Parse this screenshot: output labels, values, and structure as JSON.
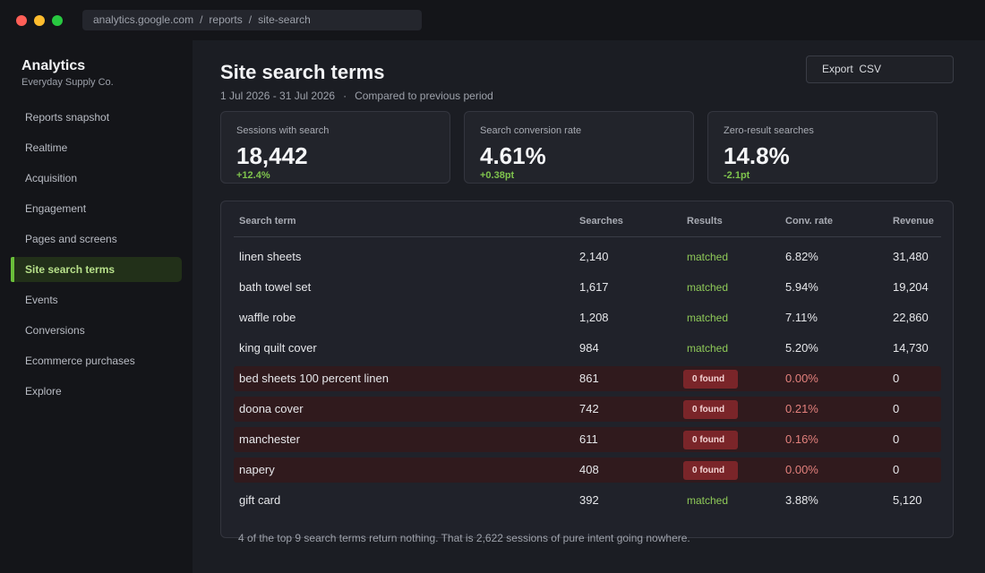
{
  "browser": {
    "url_parts": [
      "analytics.google.com",
      "reports",
      "site-search"
    ]
  },
  "sidebar": {
    "brand": "Analytics",
    "account": "Everyday Supply Co.",
    "items": [
      {
        "label": "Reports snapshot"
      },
      {
        "label": "Realtime"
      },
      {
        "label": "Acquisition"
      },
      {
        "label": "Engagement"
      },
      {
        "label": "Pages and screens"
      },
      {
        "label": "Site search terms",
        "active": true
      },
      {
        "label": "Events"
      },
      {
        "label": "Conversions"
      },
      {
        "label": "Ecommerce purchases"
      },
      {
        "label": "Explore"
      }
    ]
  },
  "header": {
    "title": "Site search terms",
    "date_range": "1 Jul 2026 - 31 Jul 2026",
    "separator": "·",
    "comparison": "Compared to previous period",
    "export_label": "Export  CSV"
  },
  "metrics": [
    {
      "label": "Sessions with search",
      "value": "18,442",
      "delta": "+12.4%"
    },
    {
      "label": "Search conversion rate",
      "value": "4.61%",
      "delta": "+0.38pt"
    },
    {
      "label": "Zero-result searches",
      "value": "14.8%",
      "delta": "-2.1pt"
    }
  ],
  "table": {
    "columns": [
      "Search term",
      "Searches",
      "Results",
      "Conv. rate",
      "Revenue"
    ],
    "rows": [
      {
        "term": "linen sheets",
        "searches": "2,140",
        "results": "matched",
        "conv": "6.82%",
        "revenue": "31,480",
        "zero": false
      },
      {
        "term": "bath towel set",
        "searches": "1,617",
        "results": "matched",
        "conv": "5.94%",
        "revenue": "19,204",
        "zero": false
      },
      {
        "term": "waffle robe",
        "searches": "1,208",
        "results": "matched",
        "conv": "7.11%",
        "revenue": "22,860",
        "zero": false
      },
      {
        "term": "king quilt cover",
        "searches": "984",
        "results": "matched",
        "conv": "5.20%",
        "revenue": "14,730",
        "zero": false
      },
      {
        "term": "bed sheets 100 percent linen",
        "searches": "861",
        "results": "0 found",
        "conv": "0.00%",
        "revenue": "0",
        "zero": true
      },
      {
        "term": "doona cover",
        "searches": "742",
        "results": "0 found",
        "conv": "0.21%",
        "revenue": "0",
        "zero": true
      },
      {
        "term": "manchester",
        "searches": "611",
        "results": "0 found",
        "conv": "0.16%",
        "revenue": "0",
        "zero": true
      },
      {
        "term": "napery",
        "searches": "408",
        "results": "0 found",
        "conv": "0.00%",
        "revenue": "0",
        "zero": true
      },
      {
        "term": "gift card",
        "searches": "392",
        "results": "matched",
        "conv": "3.88%",
        "revenue": "5,120",
        "zero": false
      }
    ],
    "footnote": "4 of the top 9 search terms return nothing. That is 2,622 sessions of pure intent going nowhere."
  },
  "colors": {
    "accent": "#6abf3a",
    "matched": "#8fca58",
    "zero_row": "#301a1d",
    "zero_badge": "#7a2529",
    "zero_conv": "#e2807c"
  }
}
